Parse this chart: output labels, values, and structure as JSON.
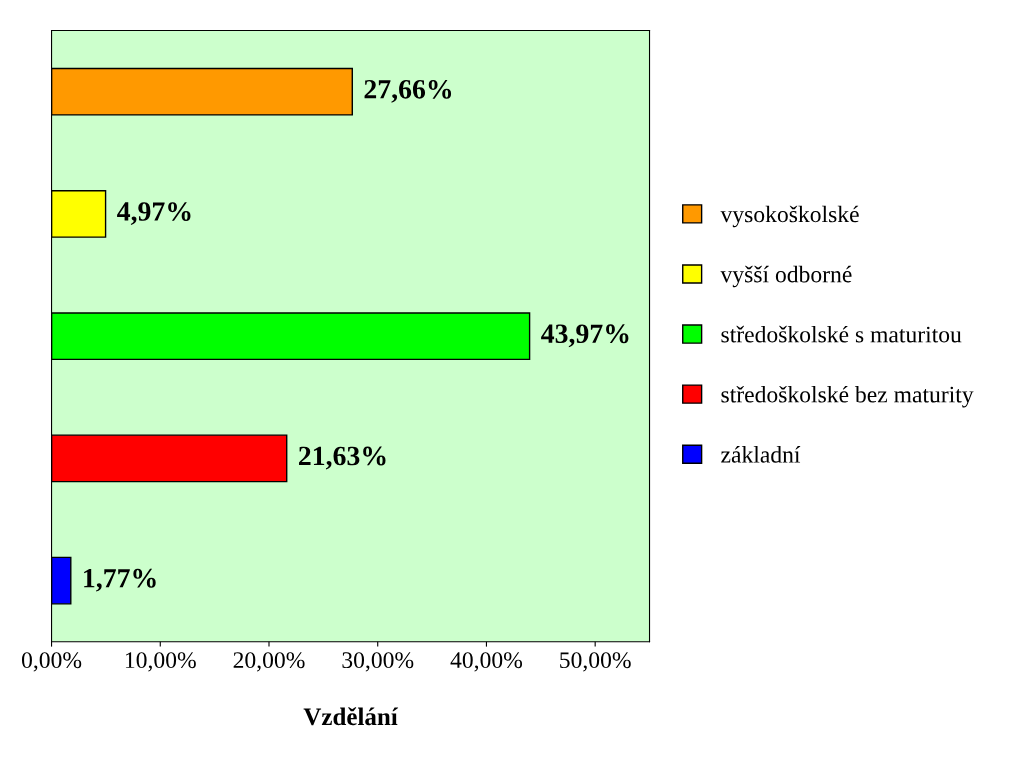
{
  "chart_data": {
    "type": "bar",
    "orientation": "horizontal",
    "xlabel": "Vzdělání",
    "categories": [
      null,
      null,
      null,
      null,
      null
    ],
    "series": [
      {
        "name": "vysokoškolské",
        "color": "#ff9900",
        "values": [
          27.66,
          null,
          null,
          null,
          null
        ],
        "value_labels": [
          "27,66%",
          null,
          null,
          null,
          null
        ]
      },
      {
        "name": "vyšší odborné",
        "color": "#ffff00",
        "values": [
          null,
          4.97,
          null,
          null,
          null
        ],
        "value_labels": [
          null,
          "4,97%",
          null,
          null,
          null
        ]
      },
      {
        "name": "středoškolské s maturitou",
        "color": "#00ff00",
        "values": [
          null,
          null,
          43.97,
          null,
          null
        ],
        "value_labels": [
          null,
          null,
          "43,97%",
          null,
          null
        ]
      },
      {
        "name": "středoškolské bez maturity",
        "color": "#ff0000",
        "values": [
          null,
          null,
          null,
          21.63,
          null
        ],
        "value_labels": [
          null,
          null,
          null,
          "21,63%",
          null
        ]
      },
      {
        "name": "základní",
        "color": "#0000ff",
        "values": [
          null,
          null,
          null,
          null,
          1.77
        ],
        "value_labels": [
          null,
          null,
          null,
          null,
          "1,77%"
        ]
      }
    ],
    "xlim": [
      0,
      55
    ],
    "xticks": [
      {
        "value": 0,
        "label": "0,00%"
      },
      {
        "value": 10,
        "label": "10,00%"
      },
      {
        "value": 20,
        "label": "20,00%"
      },
      {
        "value": 30,
        "label": "30,00%"
      },
      {
        "value": 40,
        "label": "40,00%"
      },
      {
        "value": 50,
        "label": "50,00%"
      }
    ],
    "grid": false,
    "legend": "right"
  }
}
